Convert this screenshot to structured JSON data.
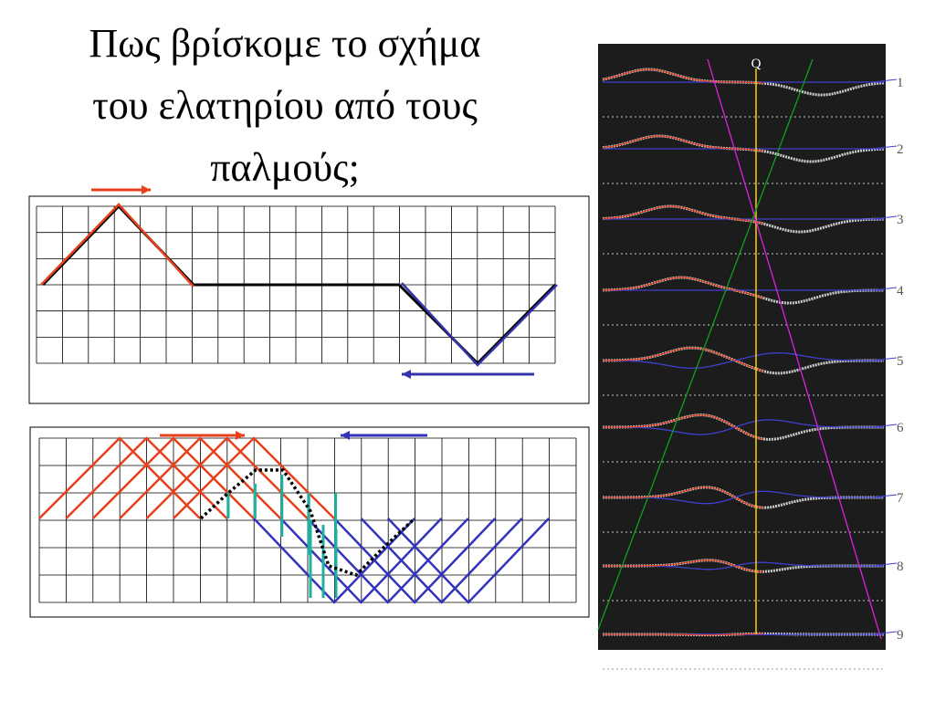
{
  "title": {
    "lines": [
      "Πως βρίσκομε το σχήμα",
      "του ελατηρίου από τους",
      "παλμούς;"
    ]
  },
  "photo": {
    "marker": "Q",
    "labels": [
      "1",
      "2",
      "3",
      "4",
      "5",
      "6",
      "7",
      "8",
      "9"
    ]
  }
}
